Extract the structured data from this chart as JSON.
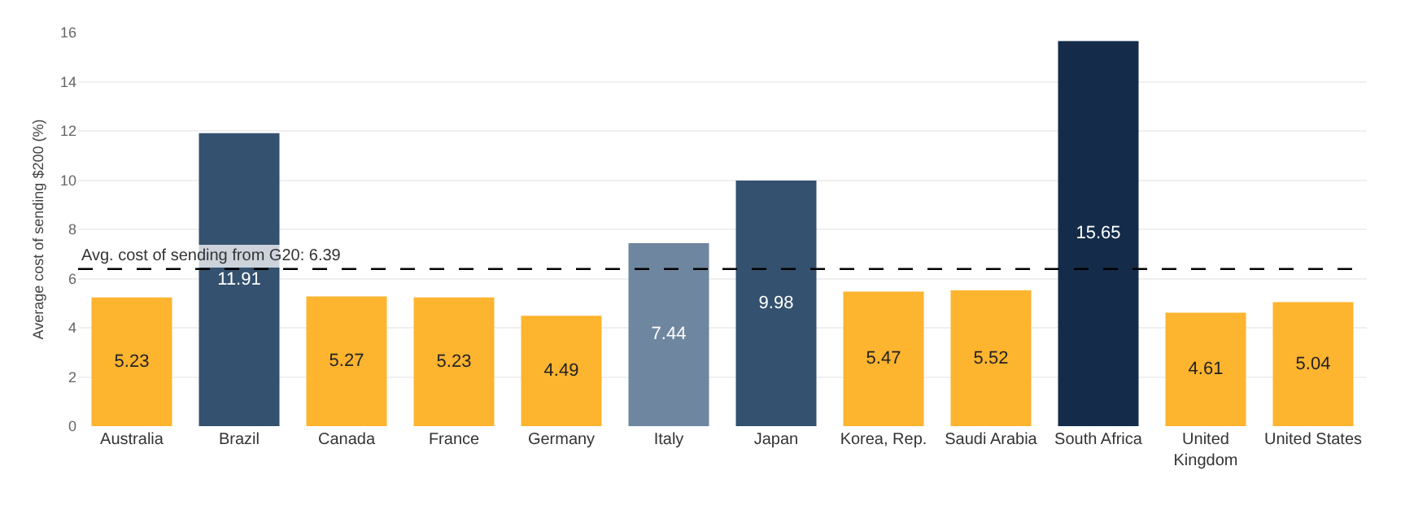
{
  "chart_data": {
    "type": "bar",
    "ylabel": "Average cost of sending $200 (%)",
    "categories": [
      "Australia",
      "Brazil",
      "Canada",
      "France",
      "Germany",
      "Italy",
      "Japan",
      "Korea, Rep.",
      "Saudi Arabia",
      "South Africa",
      "United Kingdom",
      "United States"
    ],
    "values": [
      5.23,
      11.91,
      5.27,
      5.23,
      4.49,
      7.44,
      9.98,
      5.47,
      5.52,
      15.65,
      4.61,
      5.04
    ],
    "colors": [
      "#fdb42f",
      "#34516f",
      "#fdb42f",
      "#fdb42f",
      "#fdb42f",
      "#6f86a0",
      "#34516f",
      "#fdb42f",
      "#fdb42f",
      "#142c4a",
      "#fdb42f",
      "#fdb42f"
    ],
    "data_labels": true,
    "ylim": [
      0,
      16
    ],
    "yticks": [
      0,
      2,
      4,
      6,
      8,
      10,
      12,
      14,
      16
    ],
    "grid": "y",
    "ref_lines": [
      {
        "axis": "y",
        "value": 6.39,
        "label": "Avg. cost of sending from G20: 6.39",
        "color": "#000000",
        "line_style": "dashed"
      }
    ]
  }
}
